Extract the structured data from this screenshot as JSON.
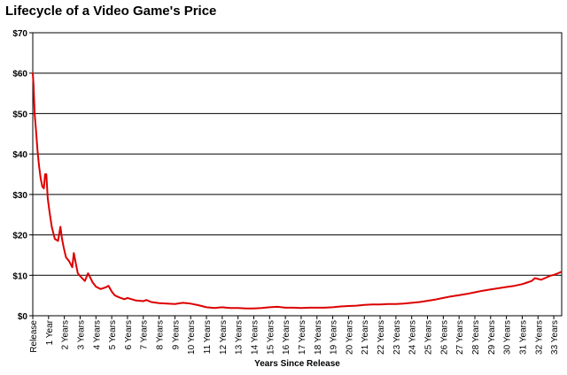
{
  "chart_data": {
    "type": "line",
    "title": "Lifecycle of a Video Game's Price",
    "xlabel": "Years Since Release",
    "ylabel": "",
    "xlim": [
      0,
      33.5
    ],
    "ylim": [
      0,
      70
    ],
    "grid": true,
    "legend": "none",
    "line_color": "#dd0000",
    "y_ticks": [
      {
        "value": 0,
        "label": "$0"
      },
      {
        "value": 10,
        "label": "$10"
      },
      {
        "value": 20,
        "label": "$20"
      },
      {
        "value": 30,
        "label": "$30"
      },
      {
        "value": 40,
        "label": "$40"
      },
      {
        "value": 50,
        "label": "$50"
      },
      {
        "value": 60,
        "label": "$60"
      },
      {
        "value": 70,
        "label": "$70"
      }
    ],
    "x_ticks": [
      {
        "value": 0,
        "label": "Release"
      },
      {
        "value": 1,
        "label": "1 Year"
      },
      {
        "value": 2,
        "label": "2 Years"
      },
      {
        "value": 3,
        "label": "3 Years"
      },
      {
        "value": 4,
        "label": "4 Years"
      },
      {
        "value": 5,
        "label": "5 Years"
      },
      {
        "value": 6,
        "label": "6 Years"
      },
      {
        "value": 7,
        "label": "7 Years"
      },
      {
        "value": 8,
        "label": "8 Years"
      },
      {
        "value": 9,
        "label": "9 Years"
      },
      {
        "value": 10,
        "label": "10 Years"
      },
      {
        "value": 11,
        "label": "11 Years"
      },
      {
        "value": 12,
        "label": "12 Years"
      },
      {
        "value": 13,
        "label": "13 Years"
      },
      {
        "value": 14,
        "label": "14 Years"
      },
      {
        "value": 15,
        "label": "15 Years"
      },
      {
        "value": 16,
        "label": "16 Years"
      },
      {
        "value": 17,
        "label": "17 Years"
      },
      {
        "value": 18,
        "label": "18 Years"
      },
      {
        "value": 19,
        "label": "19 Years"
      },
      {
        "value": 20,
        "label": "20 Years"
      },
      {
        "value": 21,
        "label": "21 Years"
      },
      {
        "value": 22,
        "label": "22 Years"
      },
      {
        "value": 23,
        "label": "23 Years"
      },
      {
        "value": 24,
        "label": "24 Years"
      },
      {
        "value": 25,
        "label": "25 Years"
      },
      {
        "value": 26,
        "label": "26 Years"
      },
      {
        "value": 27,
        "label": "27 Years"
      },
      {
        "value": 28,
        "label": "28 Years"
      },
      {
        "value": 29,
        "label": "29 Years"
      },
      {
        "value": 30,
        "label": "30 Years"
      },
      {
        "value": 31,
        "label": "31 Years"
      },
      {
        "value": 32,
        "label": "32 Years"
      },
      {
        "value": 33,
        "label": "33 Years"
      }
    ],
    "series": [
      {
        "x": [
          0,
          0.05,
          0.12,
          0.2,
          0.3,
          0.4,
          0.5,
          0.6,
          0.7,
          0.78,
          0.86,
          0.95,
          1.05,
          1.2,
          1.4,
          1.6,
          1.75,
          1.85,
          1.95,
          2.1,
          2.3,
          2.5,
          2.6,
          2.75,
          2.85,
          3.0,
          3.15,
          3.3,
          3.5,
          3.7,
          3.8,
          4.0,
          4.3,
          4.6,
          4.8,
          5.0,
          5.2,
          5.5,
          5.8,
          6.0,
          6.5,
          7.0,
          7.2,
          7.5,
          8.0,
          8.5,
          9.0,
          9.5,
          10.0,
          10.5,
          11.0,
          11.5,
          12.0,
          12.5,
          13.0,
          13.5,
          14.0,
          14.5,
          15.0,
          15.5,
          16.0,
          16.5,
          17.0,
          17.5,
          18.0,
          18.5,
          19.0,
          19.5,
          20.0,
          20.5,
          21.0,
          21.5,
          22.0,
          22.5,
          23.0,
          23.5,
          24.0,
          24.5,
          25.0,
          25.5,
          26.0,
          26.5,
          27.0,
          27.5,
          28.0,
          28.5,
          29.0,
          29.5,
          30.0,
          30.5,
          31.0,
          31.3,
          31.6,
          31.8,
          32.0,
          32.2,
          32.5,
          32.8,
          33.0,
          33.2,
          33.45
        ],
        "y": [
          60,
          57,
          50,
          46,
          41,
          37,
          34,
          32,
          31.5,
          35,
          35,
          29,
          26,
          22,
          19,
          18.5,
          22,
          19,
          17,
          14.5,
          13.5,
          12,
          15.5,
          12.5,
          10.5,
          9.8,
          9.2,
          8.6,
          10.5,
          9.0,
          8.2,
          7.2,
          6.6,
          7.0,
          7.4,
          6.0,
          5.0,
          4.5,
          4.1,
          4.4,
          3.8,
          3.6,
          3.9,
          3.4,
          3.1,
          3.0,
          2.9,
          3.2,
          3.0,
          2.6,
          2.1,
          1.9,
          2.1,
          1.9,
          1.9,
          1.8,
          1.8,
          1.9,
          2.1,
          2.2,
          2.0,
          2.0,
          1.9,
          2.0,
          2.0,
          2.0,
          2.1,
          2.3,
          2.4,
          2.5,
          2.7,
          2.8,
          2.8,
          2.9,
          2.9,
          3.0,
          3.2,
          3.4,
          3.7,
          4.0,
          4.4,
          4.8,
          5.1,
          5.4,
          5.8,
          6.2,
          6.5,
          6.8,
          7.1,
          7.4,
          7.8,
          8.2,
          8.6,
          9.3,
          9.1,
          8.9,
          9.4,
          9.9,
          10.1,
          10.4,
          10.8
        ]
      }
    ]
  }
}
